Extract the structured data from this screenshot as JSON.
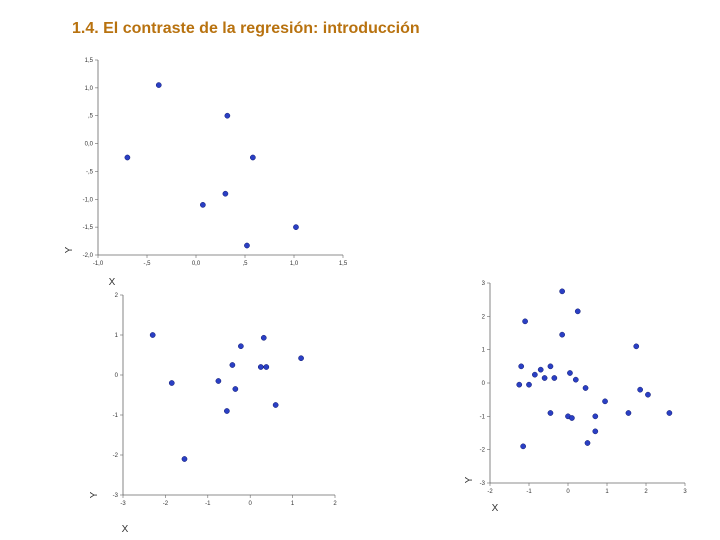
{
  "slide": {
    "title": "1.4. El contraste de la regresión: introducción"
  },
  "chart_data": [
    {
      "type": "scatter",
      "xlabel": "X",
      "ylabel": "Y",
      "xlim": [
        -1.0,
        1.5
      ],
      "ylim": [
        -2.0,
        1.5
      ],
      "xticks": [
        "-1,0",
        "-,5",
        "0,0",
        ",5",
        "1,0",
        "1,5"
      ],
      "yticks": [
        "1,5",
        "1,0",
        ",5",
        "0,0",
        "-,5",
        "-1,0",
        "-1,5",
        "-2,0"
      ],
      "point_color": "#2a3fc4",
      "points": [
        {
          "x": -0.7,
          "y": -0.25
        },
        {
          "x": -0.38,
          "y": 1.05
        },
        {
          "x": 0.32,
          "y": 0.5
        },
        {
          "x": 0.58,
          "y": -0.25
        },
        {
          "x": 0.3,
          "y": -0.9
        },
        {
          "x": 0.07,
          "y": -1.1
        },
        {
          "x": 1.02,
          "y": -1.5
        },
        {
          "x": 0.52,
          "y": -1.83
        }
      ]
    },
    {
      "type": "scatter",
      "xlabel": "X",
      "ylabel": "Y",
      "xlim": [
        -3,
        2
      ],
      "ylim": [
        -3,
        2
      ],
      "xticks": [
        "-3",
        "-2",
        "-1",
        "0",
        "1",
        "2"
      ],
      "yticks": [
        "2",
        "1",
        "0",
        "-1",
        "-2",
        "-3"
      ],
      "point_color": "#2a3fc4",
      "points": [
        {
          "x": -2.3,
          "y": 1.0
        },
        {
          "x": -1.85,
          "y": -0.2
        },
        {
          "x": -1.55,
          "y": -2.1
        },
        {
          "x": -0.75,
          "y": -0.15
        },
        {
          "x": -0.55,
          "y": -0.9
        },
        {
          "x": -0.42,
          "y": 0.25
        },
        {
          "x": -0.35,
          "y": -0.35
        },
        {
          "x": -0.22,
          "y": 0.72
        },
        {
          "x": 0.25,
          "y": 0.2
        },
        {
          "x": 0.32,
          "y": 0.93
        },
        {
          "x": 0.38,
          "y": 0.2
        },
        {
          "x": 0.6,
          "y": -0.75
        },
        {
          "x": 1.2,
          "y": 0.42
        }
      ]
    },
    {
      "type": "scatter",
      "xlabel": "X",
      "ylabel": "Y",
      "xlim": [
        -2,
        3
      ],
      "ylim": [
        -3,
        3
      ],
      "xticks": [
        "-2",
        "-1",
        "0",
        "1",
        "2",
        "3"
      ],
      "yticks": [
        "3",
        "2",
        "1",
        "0",
        "-1",
        "-2",
        "-3"
      ],
      "point_color": "#2a3fc4",
      "points": [
        {
          "x": -1.2,
          "y": 0.5
        },
        {
          "x": -1.1,
          "y": 1.85
        },
        {
          "x": -1.25,
          "y": -0.05
        },
        {
          "x": -1.0,
          "y": -0.05
        },
        {
          "x": -0.85,
          "y": 0.25
        },
        {
          "x": -0.7,
          "y": 0.4
        },
        {
          "x": -0.6,
          "y": 0.15
        },
        {
          "x": -0.45,
          "y": 0.5
        },
        {
          "x": -0.35,
          "y": 0.15
        },
        {
          "x": -0.45,
          "y": -0.9
        },
        {
          "x": -1.15,
          "y": -1.9
        },
        {
          "x": -0.15,
          "y": 2.75
        },
        {
          "x": -0.15,
          "y": 1.45
        },
        {
          "x": 0.05,
          "y": 0.3
        },
        {
          "x": 0.25,
          "y": 2.15
        },
        {
          "x": 0.2,
          "y": 0.1
        },
        {
          "x": 0.45,
          "y": -0.15
        },
        {
          "x": 0.0,
          "y": -1.0
        },
        {
          "x": 0.1,
          "y": -1.05
        },
        {
          "x": 0.7,
          "y": -1.0
        },
        {
          "x": 0.7,
          "y": -1.45
        },
        {
          "x": 0.5,
          "y": -1.8
        },
        {
          "x": 0.95,
          "y": -0.55
        },
        {
          "x": 1.55,
          "y": -0.9
        },
        {
          "x": 1.75,
          "y": 1.1
        },
        {
          "x": 1.85,
          "y": -0.2
        },
        {
          "x": 2.05,
          "y": -0.35
        },
        {
          "x": 2.6,
          "y": -0.9
        }
      ]
    }
  ]
}
